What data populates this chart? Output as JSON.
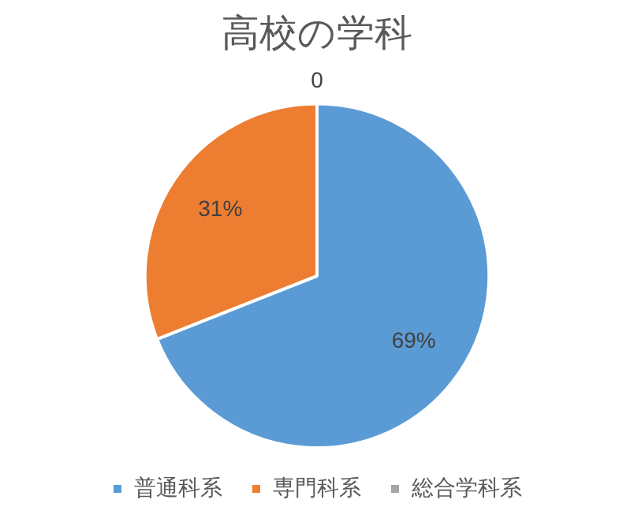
{
  "chart_data": {
    "type": "pie",
    "title": "高校の学科",
    "categories": [
      "普通科系",
      "専門科系",
      "総合学科系"
    ],
    "values": [
      69,
      31,
      0
    ],
    "colors": [
      "#5b9bd5",
      "#ed7d31",
      "#a5a5a5"
    ],
    "value_labels": [
      "69%",
      "31%",
      "0"
    ],
    "legend": "bottom"
  }
}
